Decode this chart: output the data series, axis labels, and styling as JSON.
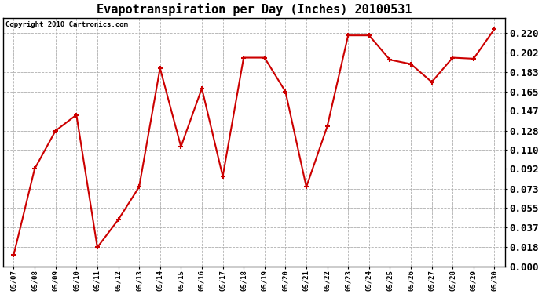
{
  "title": "Evapotranspiration per Day (Inches) 20100531",
  "copyright": "Copyright 2010 Cartronics.com",
  "dates": [
    "05/07",
    "05/08",
    "05/09",
    "05/10",
    "05/11",
    "05/12",
    "05/13",
    "05/14",
    "05/15",
    "05/16",
    "05/17",
    "05/18",
    "05/19",
    "05/20",
    "05/21",
    "05/22",
    "05/23",
    "05/24",
    "05/25",
    "05/26",
    "05/27",
    "05/28",
    "05/29",
    "05/30"
  ],
  "values": [
    0.011,
    0.092,
    0.128,
    0.143,
    0.018,
    0.044,
    0.075,
    0.187,
    0.113,
    0.168,
    0.085,
    0.197,
    0.197,
    0.165,
    0.075,
    0.132,
    0.218,
    0.218,
    0.195,
    0.191,
    0.174,
    0.197,
    0.196,
    0.224
  ],
  "line_color": "#cc0000",
  "marker": "+",
  "marker_size": 5,
  "line_width": 1.5,
  "background_color": "#ffffff",
  "grid_color": "#b0b0b0",
  "ylim": [
    0.0,
    0.2346
  ],
  "yticks": [
    0.0,
    0.018,
    0.037,
    0.055,
    0.073,
    0.092,
    0.11,
    0.128,
    0.147,
    0.165,
    0.183,
    0.202,
    0.22
  ],
  "title_fontsize": 11,
  "copyright_fontsize": 6.5,
  "xtick_fontsize": 6.5,
  "ytick_fontsize": 9,
  "right_axis": true
}
